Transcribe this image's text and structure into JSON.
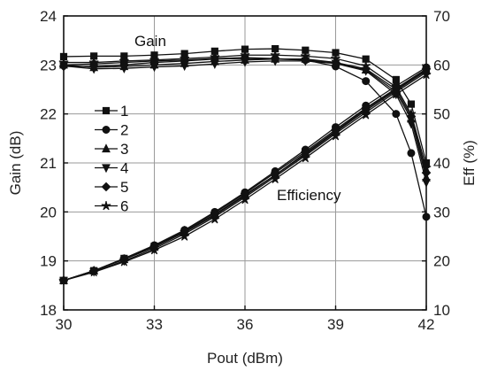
{
  "chart_data": {
    "type": "line",
    "xlabel": "Pout (dBm)",
    "ylabel_left": "Gain (dB)",
    "ylabel_right": "Eff (%)",
    "xlim": [
      30,
      42
    ],
    "ylim_left": [
      18,
      24
    ],
    "ylim_right": [
      10,
      70
    ],
    "x_ticks": [
      "30",
      "33",
      "36",
      "39",
      "42"
    ],
    "y_left_ticks": [
      "18",
      "19",
      "20",
      "21",
      "22",
      "23",
      "24"
    ],
    "y_right_ticks": [
      "10",
      "20",
      "30",
      "40",
      "50",
      "60",
      "70"
    ],
    "grid": true,
    "legend_position": "left-middle",
    "annotations": {
      "gain": "Gain",
      "efficiency": "Efficiency"
    },
    "series": [
      {
        "name": "1",
        "marker": "square",
        "gain_x": [
          30,
          31,
          32,
          33,
          34,
          35,
          36,
          37,
          38,
          39,
          40,
          41,
          41.5,
          42
        ],
        "gain_y": [
          23.17,
          23.18,
          23.18,
          23.2,
          23.23,
          23.28,
          23.32,
          23.33,
          23.3,
          23.25,
          23.12,
          22.7,
          22.2,
          21.0
        ],
        "eff_x": [
          30,
          31,
          32,
          33,
          34,
          35,
          36,
          37,
          38,
          39,
          40,
          41,
          42
        ],
        "eff_y": [
          16,
          18,
          20.5,
          23,
          26,
          29.5,
          33.5,
          37.5,
          42,
          46.5,
          51,
          55,
          59
        ]
      },
      {
        "name": "2",
        "marker": "circle",
        "gain_x": [
          30,
          31,
          32,
          33,
          34,
          35,
          36,
          37,
          38,
          39,
          40,
          41,
          41.5,
          42
        ],
        "gain_y": [
          23.0,
          23.02,
          23.05,
          23.08,
          23.1,
          23.13,
          23.15,
          23.13,
          23.1,
          22.97,
          22.67,
          22.0,
          21.2,
          19.9
        ],
        "eff_x": [
          30,
          31,
          32,
          33,
          34,
          35,
          36,
          37,
          38,
          39,
          40,
          41,
          42
        ],
        "eff_y": [
          16,
          18,
          20.5,
          23.2,
          26.3,
          30,
          34,
          38.3,
          42.7,
          47.3,
          51.7,
          55.7,
          59.5
        ]
      },
      {
        "name": "3",
        "marker": "triangle-up",
        "gain_x": [
          30,
          31,
          32,
          33,
          34,
          35,
          36,
          37,
          38,
          39,
          40,
          41,
          41.5,
          42
        ],
        "gain_y": [
          23.0,
          22.95,
          22.97,
          23.0,
          23.03,
          23.07,
          23.1,
          23.12,
          23.12,
          23.05,
          22.9,
          22.45,
          21.9,
          20.7
        ],
        "eff_x": [
          30,
          31,
          32,
          33,
          34,
          35,
          36,
          37,
          38,
          39,
          40,
          41,
          42
        ],
        "eff_y": [
          16,
          18,
          20.3,
          22.8,
          25.8,
          29.3,
          33.3,
          37.5,
          41.8,
          46.3,
          50.7,
          54.8,
          58.8
        ]
      },
      {
        "name": "4",
        "marker": "triangle-down",
        "gain_x": [
          30,
          31,
          32,
          33,
          34,
          35,
          36,
          37,
          38,
          39,
          40,
          41,
          41.5,
          42
        ],
        "gain_y": [
          22.98,
          22.92,
          22.93,
          22.96,
          22.98,
          23.02,
          23.06,
          23.08,
          23.08,
          23.03,
          22.88,
          22.4,
          21.8,
          20.6
        ],
        "eff_x": [
          30,
          31,
          32,
          33,
          34,
          35,
          36,
          37,
          38,
          39,
          40,
          41,
          42
        ],
        "eff_y": [
          16,
          17.8,
          20,
          22.5,
          25.5,
          29,
          33,
          37.2,
          41.5,
          46,
          50.3,
          54.5,
          58.5
        ]
      },
      {
        "name": "5",
        "marker": "diamond",
        "gain_x": [
          30,
          31,
          32,
          33,
          34,
          35,
          36,
          37,
          38,
          39,
          40,
          41,
          41.5,
          42
        ],
        "gain_y": [
          22.97,
          22.97,
          23.0,
          23.05,
          23.08,
          23.12,
          23.13,
          23.12,
          23.1,
          23.05,
          22.92,
          22.5,
          21.95,
          20.8
        ],
        "eff_x": [
          30,
          31,
          32,
          33,
          34,
          35,
          36,
          37,
          38,
          39,
          40,
          41,
          42
        ],
        "eff_y": [
          16,
          18,
          20.4,
          23,
          26.2,
          29.8,
          33.8,
          38,
          42.3,
          46.8,
          51.2,
          55.2,
          59.2
        ]
      },
      {
        "name": "6",
        "marker": "star",
        "gain_x": [
          30,
          31,
          32,
          33,
          34,
          35,
          36,
          37,
          38,
          39,
          40,
          41,
          41.5,
          42
        ],
        "gain_y": [
          23.05,
          23.05,
          23.08,
          23.1,
          23.13,
          23.16,
          23.2,
          23.2,
          23.18,
          23.13,
          22.98,
          22.55,
          22.0,
          20.9
        ],
        "eff_x": [
          30,
          31,
          32,
          33,
          34,
          35,
          36,
          37,
          38,
          39,
          40,
          41,
          42
        ],
        "eff_y": [
          16,
          17.7,
          19.8,
          22.2,
          25,
          28.5,
          32.5,
          36.7,
          41,
          45.5,
          49.8,
          54,
          58
        ]
      }
    ]
  }
}
